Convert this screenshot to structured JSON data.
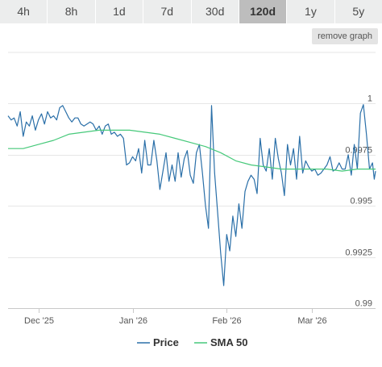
{
  "tabs": [
    {
      "label": "4h",
      "active": false
    },
    {
      "label": "8h",
      "active": false
    },
    {
      "label": "1d",
      "active": false
    },
    {
      "label": "7d",
      "active": false
    },
    {
      "label": "30d",
      "active": false
    },
    {
      "label": "120d",
      "active": true
    },
    {
      "label": "1y",
      "active": false
    },
    {
      "label": "5y",
      "active": false
    }
  ],
  "remove_graph_label": "remove graph",
  "colors": {
    "price": "#2a6fa8",
    "sma": "#46c97a",
    "grid": "#e6e6e6",
    "active_tab": "#bdbdbd",
    "tab": "#eceded"
  },
  "chart_data": {
    "type": "line",
    "x_tick_labels": [
      "Dec '25",
      "Jan '26",
      "Feb '26",
      "Mar '26"
    ],
    "y_tick_labels": [
      "1",
      "0.9975",
      "0.995",
      "0.9925",
      "0.99"
    ],
    "y_ticks": [
      1.0,
      0.9975,
      0.995,
      0.9925,
      0.99
    ],
    "ylim": [
      0.99,
      1.0025
    ],
    "x_range": [
      "2025-11-21",
      "2026-03-22"
    ],
    "x_ticks": [
      "2025-12-01",
      "2026-01-01",
      "2026-02-01",
      "2026-03-01"
    ],
    "grid": true,
    "legend_position": "bottom-center",
    "series": [
      {
        "name": "Price",
        "values": [
          [
            "2025-11-21",
            0.9994
          ],
          [
            "2025-11-22",
            0.9992
          ],
          [
            "2025-11-23",
            0.9993
          ],
          [
            "2025-11-24",
            0.9989
          ],
          [
            "2025-11-25",
            0.9996
          ],
          [
            "2025-11-26",
            0.9984
          ],
          [
            "2025-11-27",
            0.9991
          ],
          [
            "2025-11-28",
            0.9989
          ],
          [
            "2025-11-29",
            0.9994
          ],
          [
            "2025-11-30",
            0.9987
          ],
          [
            "2025-12-01",
            0.9992
          ],
          [
            "2025-12-02",
            0.9995
          ],
          [
            "2025-12-03",
            0.999
          ],
          [
            "2025-12-04",
            0.9996
          ],
          [
            "2025-12-05",
            0.9993
          ],
          [
            "2025-12-06",
            0.9994
          ],
          [
            "2025-12-07",
            0.9992
          ],
          [
            "2025-12-08",
            0.9998
          ],
          [
            "2025-12-09",
            0.9999
          ],
          [
            "2025-12-10",
            0.9996
          ],
          [
            "2025-12-11",
            0.9993
          ],
          [
            "2025-12-12",
            0.9991
          ],
          [
            "2025-12-13",
            0.9993
          ],
          [
            "2025-12-14",
            0.9993
          ],
          [
            "2025-12-15",
            0.999
          ],
          [
            "2025-12-16",
            0.9989
          ],
          [
            "2025-12-17",
            0.999
          ],
          [
            "2025-12-18",
            0.9991
          ],
          [
            "2025-12-19",
            0.999
          ],
          [
            "2025-12-20",
            0.9987
          ],
          [
            "2025-12-21",
            0.9989
          ],
          [
            "2025-12-22",
            0.9985
          ],
          [
            "2025-12-23",
            0.9989
          ],
          [
            "2025-12-24",
            0.999
          ],
          [
            "2025-12-25",
            0.9985
          ],
          [
            "2025-12-26",
            0.9986
          ],
          [
            "2025-12-27",
            0.9984
          ],
          [
            "2025-12-28",
            0.9985
          ],
          [
            "2025-12-29",
            0.9983
          ],
          [
            "2025-12-30",
            0.997
          ],
          [
            "2025-12-31",
            0.9971
          ],
          [
            "2026-01-01",
            0.9974
          ],
          [
            "2026-01-02",
            0.9972
          ],
          [
            "2026-01-03",
            0.9978
          ],
          [
            "2026-01-04",
            0.9966
          ],
          [
            "2026-01-05",
            0.9982
          ],
          [
            "2026-01-06",
            0.997
          ],
          [
            "2026-01-07",
            0.997
          ],
          [
            "2026-01-08",
            0.9982
          ],
          [
            "2026-01-09",
            0.9972
          ],
          [
            "2026-01-10",
            0.9958
          ],
          [
            "2026-01-11",
            0.9967
          ],
          [
            "2026-01-12",
            0.9976
          ],
          [
            "2026-01-13",
            0.9962
          ],
          [
            "2026-01-14",
            0.997
          ],
          [
            "2026-01-15",
            0.9962
          ],
          [
            "2026-01-16",
            0.9976
          ],
          [
            "2026-01-17",
            0.9964
          ],
          [
            "2026-01-18",
            0.9973
          ],
          [
            "2026-01-19",
            0.9977
          ],
          [
            "2026-01-20",
            0.9965
          ],
          [
            "2026-01-21",
            0.9961
          ],
          [
            "2026-01-22",
            0.9976
          ],
          [
            "2026-01-23",
            0.998
          ],
          [
            "2026-01-24",
            0.9966
          ],
          [
            "2026-01-25",
            0.995
          ],
          [
            "2026-01-26",
            0.9939
          ],
          [
            "2026-01-27",
            0.9999
          ],
          [
            "2026-01-28",
            0.9966
          ],
          [
            "2026-01-29",
            0.9947
          ],
          [
            "2026-01-30",
            0.9927
          ],
          [
            "2026-01-31",
            0.9911
          ],
          [
            "2026-02-01",
            0.9936
          ],
          [
            "2026-02-02",
            0.9928
          ],
          [
            "2026-02-03",
            0.9945
          ],
          [
            "2026-02-04",
            0.9935
          ],
          [
            "2026-02-05",
            0.9951
          ],
          [
            "2026-02-06",
            0.9939
          ],
          [
            "2026-02-07",
            0.9957
          ],
          [
            "2026-02-08",
            0.9962
          ],
          [
            "2026-02-09",
            0.9965
          ],
          [
            "2026-02-10",
            0.9963
          ],
          [
            "2026-02-11",
            0.9956
          ],
          [
            "2026-02-12",
            0.9983
          ],
          [
            "2026-02-13",
            0.997
          ],
          [
            "2026-02-14",
            0.9967
          ],
          [
            "2026-02-15",
            0.9978
          ],
          [
            "2026-02-16",
            0.9963
          ],
          [
            "2026-02-17",
            0.9983
          ],
          [
            "2026-02-18",
            0.9973
          ],
          [
            "2026-02-19",
            0.9966
          ],
          [
            "2026-02-20",
            0.9955
          ],
          [
            "2026-02-21",
            0.998
          ],
          [
            "2026-02-22",
            0.997
          ],
          [
            "2026-02-23",
            0.9978
          ],
          [
            "2026-02-24",
            0.9963
          ],
          [
            "2026-02-25",
            0.9984
          ],
          [
            "2026-02-26",
            0.9966
          ],
          [
            "2026-02-27",
            0.9972
          ],
          [
            "2026-02-28",
            0.9969
          ],
          [
            "2026-03-01",
            0.9967
          ],
          [
            "2026-03-02",
            0.9968
          ],
          [
            "2026-03-03",
            0.9965
          ],
          [
            "2026-03-04",
            0.9966
          ],
          [
            "2026-03-05",
            0.9968
          ],
          [
            "2026-03-06",
            0.997
          ],
          [
            "2026-03-07",
            0.9974
          ],
          [
            "2026-03-08",
            0.9967
          ],
          [
            "2026-03-09",
            0.9968
          ],
          [
            "2026-03-10",
            0.9971
          ],
          [
            "2026-03-11",
            0.9968
          ],
          [
            "2026-03-12",
            0.9968
          ],
          [
            "2026-03-13",
            0.9975
          ],
          [
            "2026-03-14",
            0.9965
          ],
          [
            "2026-03-15",
            0.998
          ],
          [
            "2026-03-16",
            0.9968
          ],
          [
            "2026-03-17",
            0.99953
          ],
          [
            "2026-03-18",
            0.99995
          ],
          [
            "2026-03-19",
            0.9985
          ],
          [
            "2026-03-20",
            0.9968
          ],
          [
            "2026-03-21",
            0.9971
          ],
          [
            "2026-03-21T14:00",
            0.9963
          ],
          [
            "2026-03-22",
            0.9967
          ]
        ]
      },
      {
        "name": "SMA 50",
        "values": [
          [
            "2025-11-21",
            0.9978
          ],
          [
            "2025-11-26",
            0.9978
          ],
          [
            "2025-12-01",
            0.998
          ],
          [
            "2025-12-06",
            0.9982
          ],
          [
            "2025-12-11",
            0.9985
          ],
          [
            "2025-12-16",
            0.9986
          ],
          [
            "2025-12-21",
            0.9987
          ],
          [
            "2025-12-26",
            0.9987
          ],
          [
            "2025-12-31",
            0.9987
          ],
          [
            "2026-01-05",
            0.9986
          ],
          [
            "2026-01-10",
            0.9985
          ],
          [
            "2026-01-15",
            0.9983
          ],
          [
            "2026-01-20",
            0.9981
          ],
          [
            "2026-01-25",
            0.9979
          ],
          [
            "2026-01-30",
            0.9976
          ],
          [
            "2026-02-04",
            0.9972
          ],
          [
            "2026-02-09",
            0.997
          ],
          [
            "2026-02-14",
            0.9969
          ],
          [
            "2026-02-19",
            0.9968
          ],
          [
            "2026-02-24",
            0.9968
          ],
          [
            "2026-03-01",
            0.9968
          ],
          [
            "2026-03-06",
            0.9968
          ],
          [
            "2026-03-11",
            0.9967
          ],
          [
            "2026-03-16",
            0.9968
          ],
          [
            "2026-03-22",
            0.9968
          ]
        ]
      }
    ]
  }
}
